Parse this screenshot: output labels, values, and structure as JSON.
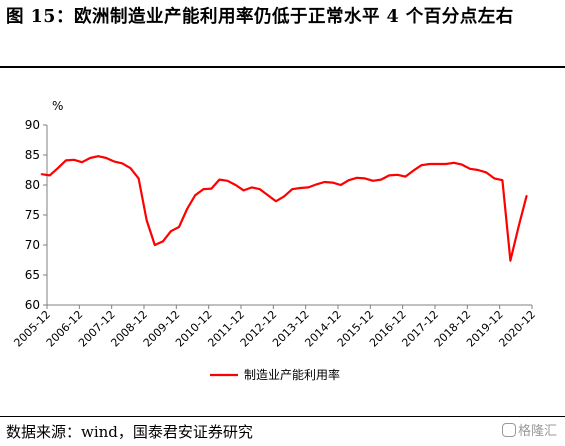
{
  "title": "图 15：欧洲制造业产能利用率仍低于正常水平 4 个百分点左右",
  "source": "数据来源：wind，国泰君安证券研究",
  "watermark": "格隆汇",
  "chart_data": {
    "type": "line",
    "ylabel": "%",
    "ylim": [
      60,
      90
    ],
    "yticks": [
      60,
      65,
      70,
      75,
      80,
      85,
      90
    ],
    "x_tick_labels": [
      "2005-12",
      "2006-12",
      "2007-12",
      "2008-12",
      "2009-12",
      "2010-12",
      "2011-12",
      "2012-12",
      "2013-12",
      "2014-12",
      "2015-12",
      "2016-12",
      "2017-12",
      "2018-12",
      "2019-12",
      "2020-12"
    ],
    "xlim": [
      "2005-12",
      "2020-12"
    ],
    "grid": false,
    "legend_position": "bottom",
    "series": [
      {
        "name": "制造业产能利用率",
        "color": "#ff0000",
        "frequency": "quarterly",
        "x": [
          "2005-10",
          "2006-01",
          "2006-04",
          "2006-07",
          "2006-10",
          "2007-01",
          "2007-04",
          "2007-07",
          "2007-10",
          "2008-01",
          "2008-04",
          "2008-07",
          "2008-10",
          "2009-01",
          "2009-04",
          "2009-07",
          "2009-10",
          "2010-01",
          "2010-04",
          "2010-07",
          "2010-10",
          "2011-01",
          "2011-04",
          "2011-07",
          "2011-10",
          "2012-01",
          "2012-04",
          "2012-07",
          "2012-10",
          "2013-01",
          "2013-04",
          "2013-07",
          "2013-10",
          "2014-01",
          "2014-04",
          "2014-07",
          "2014-10",
          "2015-01",
          "2015-04",
          "2015-07",
          "2015-10",
          "2016-01",
          "2016-04",
          "2016-07",
          "2016-10",
          "2017-01",
          "2017-04",
          "2017-07",
          "2017-10",
          "2018-01",
          "2018-04",
          "2018-07",
          "2018-10",
          "2019-01",
          "2019-04",
          "2019-07",
          "2019-10",
          "2020-01",
          "2020-04",
          "2020-07",
          "2020-10"
        ],
        "values": [
          81.8,
          81.6,
          82.8,
          84.1,
          84.2,
          83.8,
          84.5,
          84.8,
          84.5,
          83.9,
          83.6,
          82.8,
          81.1,
          74.1,
          70.0,
          70.6,
          72.3,
          73.0,
          76.0,
          78.3,
          79.3,
          79.4,
          80.9,
          80.7,
          80.0,
          79.1,
          79.6,
          79.3,
          78.3,
          77.3,
          78.1,
          79.3,
          79.5,
          79.6,
          80.1,
          80.5,
          80.4,
          80.0,
          80.8,
          81.2,
          81.1,
          80.7,
          80.9,
          81.6,
          81.7,
          81.4,
          82.4,
          83.3,
          83.5,
          83.5,
          83.5,
          83.7,
          83.4,
          82.7,
          82.5,
          82.1,
          81.1,
          80.8,
          67.4,
          73.0,
          78.2
        ]
      }
    ]
  }
}
